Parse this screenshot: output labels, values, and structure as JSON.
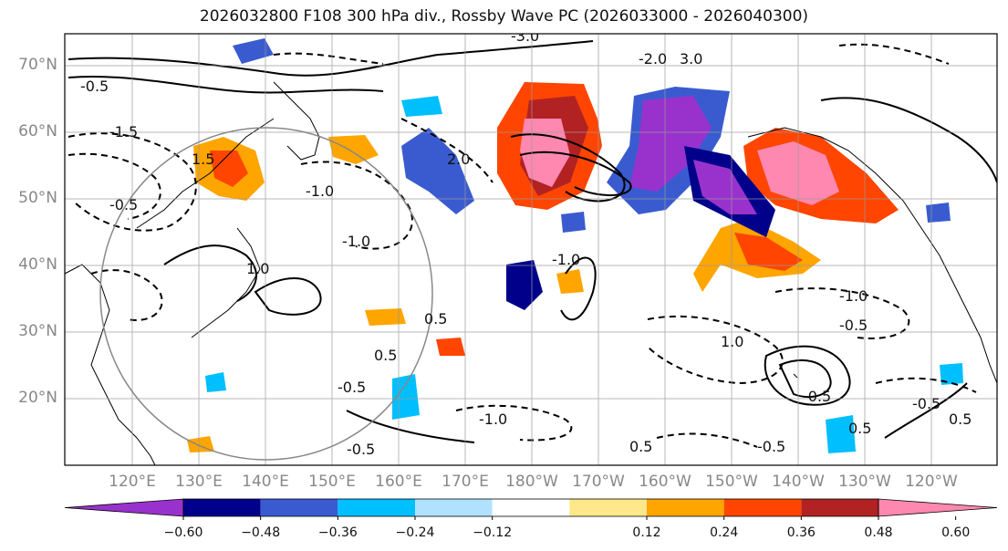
{
  "title": "2026032800 F108 300 hPa div., Rossby Wave PC (2026033000 - 2026040300)",
  "lat_labels": [
    "70°N",
    "60°N",
    "50°N",
    "40°N",
    "30°N",
    "20°N"
  ],
  "lon_labels": [
    "120°E",
    "130°E",
    "140°E",
    "150°E",
    "160°E",
    "170°E",
    "180°W",
    "170°W",
    "160°W",
    "150°W",
    "140°W",
    "130°W",
    "120°W"
  ],
  "colorbar": {
    "colors": [
      "#9932cc",
      "#00008b",
      "#3a5bd0",
      "#00bfff",
      "#b0e2ff",
      "#ffffff",
      "#ffe88a",
      "#ffa500",
      "#ff4500",
      "#b22222",
      "#ff88b0"
    ],
    "tick_labels": [
      "−0.60",
      "−0.48",
      "−0.36",
      "−0.24",
      "−0.12",
      "0.12",
      "0.24",
      "0.36",
      "0.48",
      "0.60"
    ]
  },
  "contour_labels": [
    "-0.5",
    "-1.5",
    "-1.0",
    "-3.0",
    "-2.0",
    "-0.5",
    "-1.0",
    "0.5",
    "1.0",
    "1.5",
    "2.0",
    "3.0",
    "-0.5",
    "-1.0",
    "-0.5",
    "-1.0",
    "-0.5",
    "-0.5",
    "0.5",
    "0.5",
    "1.0",
    "-0.5",
    "-1.0",
    "0.5",
    "-0.5",
    "0.5"
  ],
  "colors": {
    "frame": "#000000",
    "grid": "#999999",
    "coast": "#000000",
    "circle": "#888888"
  }
}
